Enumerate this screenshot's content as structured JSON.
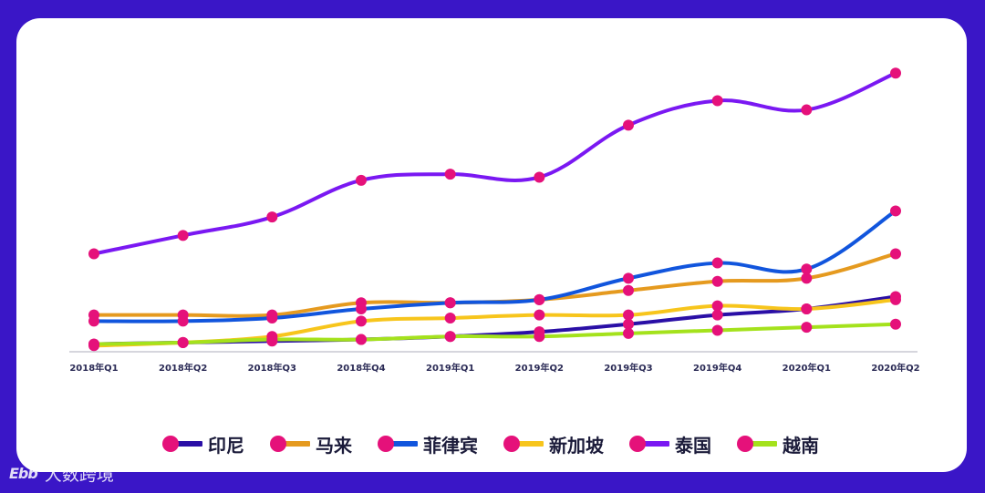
{
  "chart_data": {
    "type": "line",
    "categories": [
      "2018年Q1",
      "2018年Q2",
      "2018年Q3",
      "2018年Q4",
      "2019年Q1",
      "2019年Q2",
      "2019年Q3",
      "2019年Q4",
      "2020年Q1",
      "2020年Q2"
    ],
    "ylim": [
      0,
      100
    ],
    "marker_color": "#e5117a",
    "series": [
      {
        "name": "印尼",
        "color": "#2a0fa6",
        "values": [
          2.5,
          3,
          3.5,
          4,
          5,
          6.5,
          9,
          12,
          14,
          18
        ]
      },
      {
        "name": "马来",
        "color": "#e59a1f",
        "values": [
          12,
          12,
          12,
          16,
          16,
          17,
          20,
          23,
          24,
          32
        ]
      },
      {
        "name": "菲律宾",
        "color": "#1155dd",
        "values": [
          10,
          10,
          11,
          14,
          16,
          17,
          24,
          29,
          27,
          46
        ]
      },
      {
        "name": "新加坡",
        "color": "#f7c51c",
        "values": [
          2,
          3,
          5,
          10,
          11,
          12,
          12,
          15,
          14,
          17
        ]
      },
      {
        "name": "泰国",
        "color": "#7a18f2",
        "values": [
          32,
          38,
          44,
          56,
          58,
          57,
          74,
          82,
          79,
          91
        ]
      },
      {
        "name": "越南",
        "color": "#a4e21c",
        "values": [
          2.5,
          3,
          4,
          4,
          5,
          5,
          6,
          7,
          8,
          9
        ]
      }
    ]
  },
  "watermark": {
    "logo": "Ebb",
    "text": "大数跨境"
  }
}
